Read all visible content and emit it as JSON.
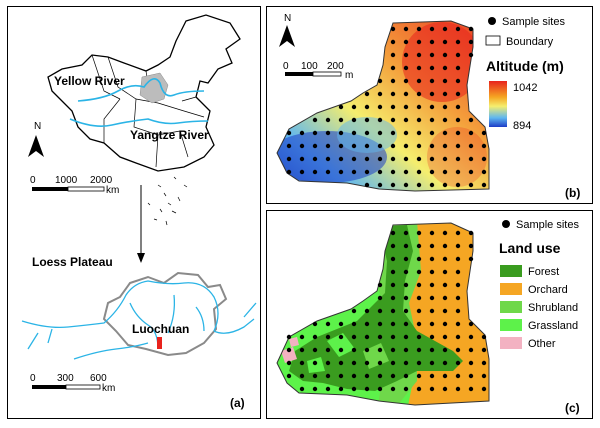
{
  "panel_a": {
    "letter": "(a)",
    "north": "N",
    "labels": {
      "yellow_river": "Yellow River",
      "yangtze_river": "Yangtze River",
      "loess_plateau": "Loess Plateau",
      "luochuan": "Luochuan"
    },
    "scale_top": {
      "ticks": [
        "0",
        "1000",
        "2000"
      ],
      "unit": "km"
    },
    "scale_bottom": {
      "ticks": [
        "0",
        "300",
        "600"
      ],
      "unit": "km"
    }
  },
  "panel_b": {
    "letter": "(b)",
    "north": "N",
    "scale": {
      "ticks": [
        "0",
        "100",
        "200"
      ],
      "unit": "m"
    },
    "legend": {
      "sites": "Sample sites",
      "boundary": "Boundary",
      "title": "Altitude (m)",
      "max": "1042",
      "min": "894"
    },
    "colors": {
      "high": "#e8231d",
      "mid": "#f5ee6e",
      "low": "#1c3cc7"
    }
  },
  "panel_c": {
    "letter": "(c)",
    "legend": {
      "sites": "Sample sites",
      "title": "Land use",
      "classes": [
        {
          "label": "Forest",
          "color": "#3a9c1f"
        },
        {
          "label": "Orchard",
          "color": "#f5a623"
        },
        {
          "label": "Shrubland",
          "color": "#6fd84a"
        },
        {
          "label": "Grassland",
          "color": "#5df24a"
        },
        {
          "label": "Other",
          "color": "#f3b2c2"
        }
      ]
    }
  }
}
